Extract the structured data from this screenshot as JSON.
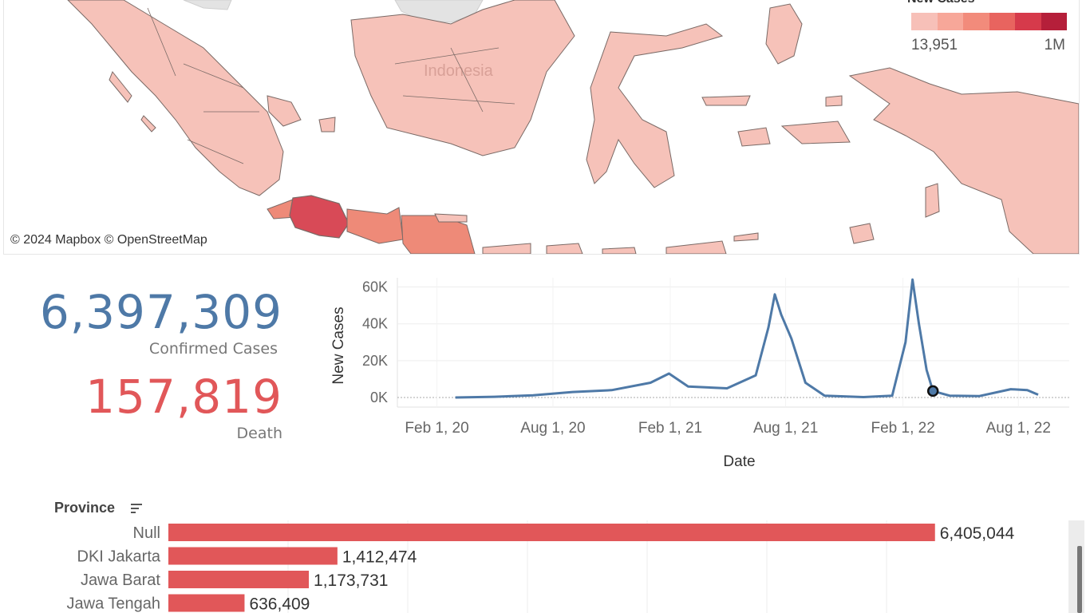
{
  "map": {
    "attribution": "© 2024 Mapbox © OpenStreetMap",
    "country_label": "Indonesia",
    "legend": {
      "title": "New Cases",
      "min_label": "13,951",
      "max_label": "1M",
      "colors": [
        "#f7c0b8",
        "#f7a799",
        "#f28b7b",
        "#e8645f",
        "#d63a4b",
        "#b51f3a"
      ]
    },
    "colors": {
      "land_low": "#f6c2b9",
      "land_mid": "#ee8a78",
      "land_high": "#d84a57",
      "neighbor": "#e3e3e3",
      "border": "#7a6a66"
    }
  },
  "kpis": {
    "confirmed_value": "6,397,309",
    "confirmed_label": "Confirmed Cases",
    "death_value": "157,819",
    "death_label": "Death",
    "confirmed_color": "#4e79a7",
    "death_color": "#e15759"
  },
  "chart_data": [
    {
      "type": "line",
      "xlabel": "Date",
      "ylabel": "New Cases",
      "x_ticks": [
        "Feb 1, 20",
        "Aug 1, 20",
        "Feb 1, 21",
        "Aug 1, 21",
        "Feb 1, 22",
        "Aug 1, 22"
      ],
      "y_ticks": [
        "0K",
        "20K",
        "40K",
        "60K"
      ],
      "ylim": [
        0,
        65000
      ],
      "grid": true,
      "line_color": "#4e79a7",
      "highlight_point": {
        "date": "2022-03-20",
        "value": 3500
      },
      "x": [
        "2020-03-01",
        "2020-05-01",
        "2020-07-01",
        "2020-09-01",
        "2020-11-01",
        "2021-01-01",
        "2021-01-30",
        "2021-03-01",
        "2021-05-01",
        "2021-06-15",
        "2021-07-05",
        "2021-07-15",
        "2021-07-25",
        "2021-08-10",
        "2021-09-01",
        "2021-10-01",
        "2021-12-01",
        "2022-01-15",
        "2022-02-05",
        "2022-02-16",
        "2022-02-26",
        "2022-03-10",
        "2022-03-20",
        "2022-04-15",
        "2022-06-01",
        "2022-07-20",
        "2022-08-15",
        "2022-09-01"
      ],
      "y": [
        0,
        400,
        1200,
        3000,
        4000,
        8000,
        13000,
        6000,
        5000,
        12000,
        38000,
        56000,
        45000,
        32000,
        8000,
        1000,
        200,
        1000,
        30000,
        64000,
        40000,
        15000,
        3500,
        1000,
        800,
        4500,
        4000,
        1500
      ]
    },
    {
      "type": "bar",
      "title": "Province",
      "categories": [
        "Null",
        "DKI Jakarta",
        "Jawa Barat",
        "Jawa Tengah"
      ],
      "values": [
        6405044,
        1412474,
        1173731,
        636409
      ],
      "value_labels": [
        "6,405,044",
        "1,412,474",
        "1,173,731",
        "636,409"
      ],
      "xlim": [
        0,
        7000000
      ],
      "bar_color": "#e15759"
    }
  ]
}
